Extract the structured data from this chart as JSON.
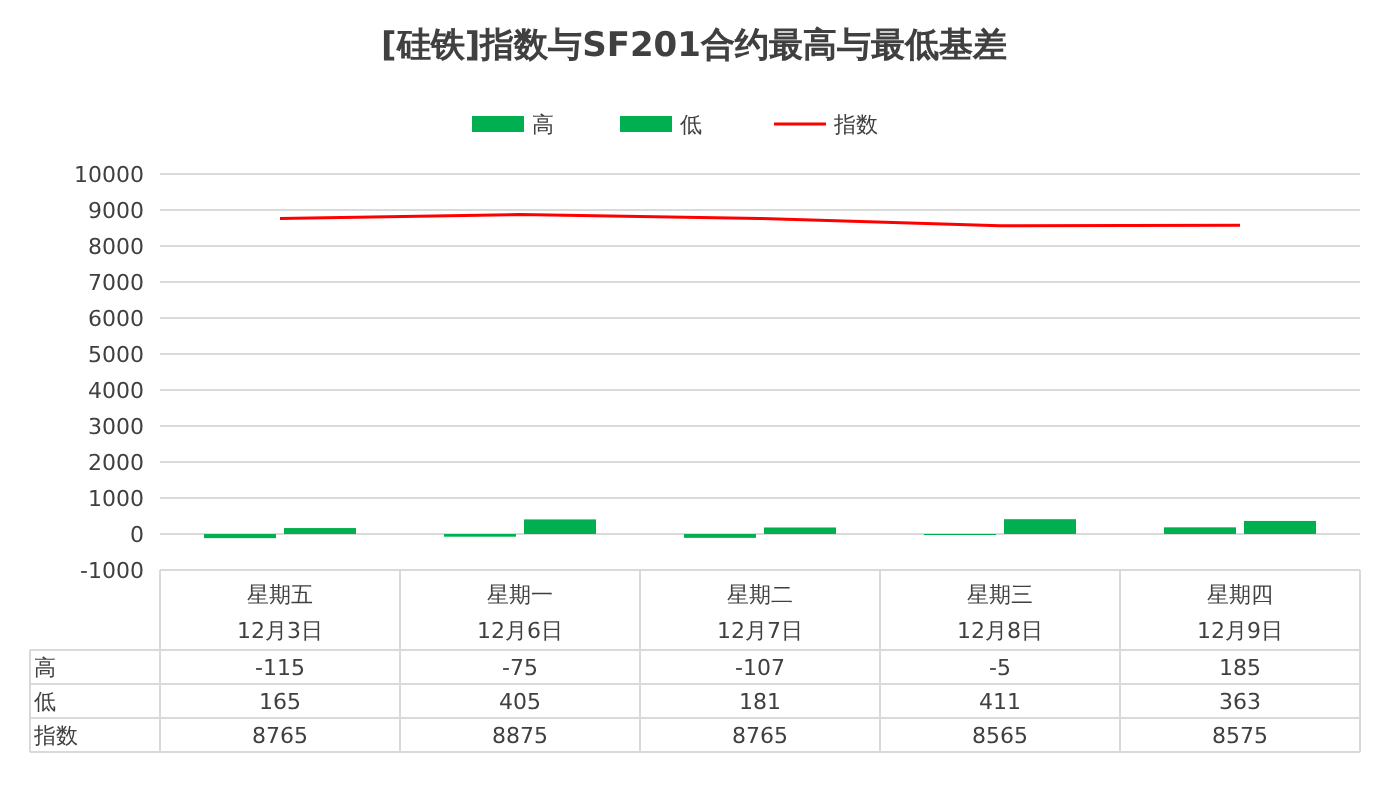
{
  "chart_data": {
    "type": "bar",
    "title": "[硅铁]指数与SF201合约最高与最低基差",
    "categories": [
      "星期五\n12月3日",
      "星期一\n12月6日",
      "星期二\n12月7日",
      "星期三\n12月8日",
      "星期四\n12月9日"
    ],
    "series": [
      {
        "name": "高",
        "color": "#00b050",
        "values": [
          -115,
          -75,
          -107,
          -5,
          185
        ]
      },
      {
        "name": "低",
        "color": "#00b050",
        "values": [
          165,
          405,
          181,
          411,
          363
        ]
      },
      {
        "name": "指数",
        "type": "line",
        "color": "#ff0000",
        "values": [
          8765,
          8875,
          8765,
          8565,
          8575
        ]
      }
    ],
    "ylim": [
      -1000,
      10000
    ],
    "yticks": [
      -1000,
      0,
      1000,
      2000,
      3000,
      4000,
      5000,
      6000,
      7000,
      8000,
      9000,
      10000
    ],
    "grid": "y",
    "legend": "top",
    "data_labels": true
  }
}
